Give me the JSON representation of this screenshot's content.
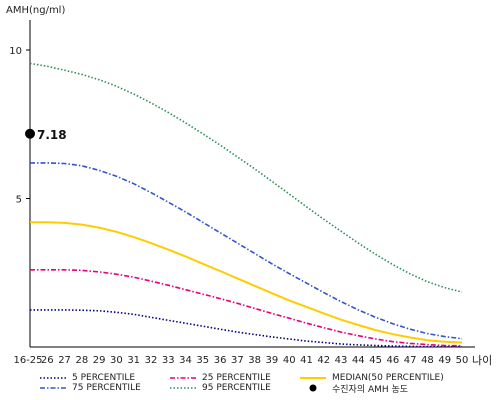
{
  "chart_data": {
    "type": "line",
    "ylabel": "AMH(ng/ml)",
    "xlabel": "나이",
    "x_tick_labels": [
      "16-25",
      "26",
      "27",
      "28",
      "29",
      "30",
      "31",
      "32",
      "33",
      "34",
      "35",
      "36",
      "37",
      "38",
      "39",
      "40",
      "41",
      "42",
      "43",
      "44",
      "45",
      "46",
      "47",
      "48",
      "49",
      "50"
    ],
    "y_ticks": [
      5,
      10
    ],
    "ylim": [
      0,
      11
    ],
    "grid": false,
    "legend_position": "bottom",
    "series": [
      {
        "name": "5 PERCENTILE",
        "color": "#000080",
        "dash": "dotted",
        "values": [
          1.25,
          1.25,
          1.25,
          1.24,
          1.22,
          1.17,
          1.1,
          1.0,
          0.9,
          0.8,
          0.7,
          0.6,
          0.5,
          0.42,
          0.34,
          0.27,
          0.2,
          0.15,
          0.1,
          0.07,
          0.05,
          0.03,
          0.02,
          0.01,
          0.01,
          0.01
        ]
      },
      {
        "name": "25 PERCENTILE",
        "color": "#e6007e",
        "dash": "dashdot",
        "values": [
          2.6,
          2.6,
          2.6,
          2.58,
          2.53,
          2.45,
          2.35,
          2.22,
          2.08,
          1.93,
          1.78,
          1.63,
          1.47,
          1.3,
          1.13,
          0.97,
          0.8,
          0.65,
          0.5,
          0.38,
          0.27,
          0.18,
          0.12,
          0.08,
          0.05,
          0.04
        ]
      },
      {
        "name": "MEDIAN(50 PERCENTILE)",
        "color": "#ffcc00",
        "dash": "solid",
        "values": [
          4.2,
          4.2,
          4.18,
          4.12,
          4.02,
          3.88,
          3.7,
          3.5,
          3.28,
          3.05,
          2.8,
          2.56,
          2.31,
          2.06,
          1.81,
          1.57,
          1.35,
          1.13,
          0.92,
          0.74,
          0.57,
          0.43,
          0.32,
          0.23,
          0.18,
          0.15
        ]
      },
      {
        "name": "75 PERCENTILE",
        "color": "#3355cc",
        "dash": "dashdot",
        "values": [
          6.2,
          6.2,
          6.18,
          6.1,
          5.95,
          5.75,
          5.5,
          5.2,
          4.88,
          4.55,
          4.2,
          3.85,
          3.5,
          3.15,
          2.8,
          2.47,
          2.15,
          1.83,
          1.53,
          1.25,
          1.0,
          0.78,
          0.6,
          0.45,
          0.35,
          0.28
        ]
      },
      {
        "name": "95 PERCENTILE",
        "color": "#2e8b57",
        "dash": "dotted",
        "values": [
          9.55,
          9.45,
          9.32,
          9.18,
          9.0,
          8.78,
          8.52,
          8.22,
          7.9,
          7.55,
          7.18,
          6.8,
          6.4,
          6.0,
          5.58,
          5.15,
          4.72,
          4.3,
          3.9,
          3.5,
          3.12,
          2.77,
          2.46,
          2.2,
          2.0,
          1.85
        ]
      }
    ],
    "marker": {
      "label": "수진자의 AMH 농도",
      "x": "16-25",
      "value": 7.18,
      "value_label": "7.18",
      "color": "#000000"
    }
  },
  "legend": {
    "items": [
      {
        "label": "5 PERCENTILE",
        "series": 0
      },
      {
        "label": "25 PERCENTILE",
        "series": 1
      },
      {
        "label": "MEDIAN(50 PERCENTILE)",
        "series": 2
      },
      {
        "label": "75 PERCENTILE",
        "series": 3
      },
      {
        "label": "95 PERCENTILE",
        "series": 4
      },
      {
        "label": "수진자의 AMH 농도",
        "series": -1
      }
    ]
  }
}
